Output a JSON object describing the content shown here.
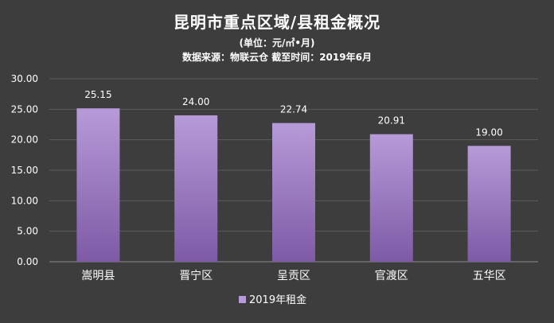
{
  "chart_data": {
    "type": "bar",
    "title": "昆明市重点区域/县租金概况",
    "subtitle": "(单位：元/㎡•月)",
    "source": "数据来源：物联云仓  截至时间：2019年6月",
    "categories": [
      "嵩明县",
      "晋宁区",
      "呈贡区",
      "官渡区",
      "五华区"
    ],
    "series": [
      {
        "name": "2019年租金",
        "values": [
          25.15,
          24.0,
          22.74,
          20.91,
          19.0
        ],
        "value_labels": [
          "25.15",
          "24.00",
          "22.74",
          "20.91",
          "19.00"
        ]
      }
    ],
    "ylim": [
      0,
      30
    ],
    "yticks": [
      "0.00",
      "5.00",
      "10.00",
      "15.00",
      "20.00",
      "25.00",
      "30.00"
    ],
    "grid": true,
    "legend": "bottom-center",
    "colors": {
      "bar_top": "#b79ad8",
      "bar_bottom": "#7e5aa6",
      "background": "#3d3d3d",
      "grid": "#5c5c5c",
      "text": "#ffffff"
    }
  }
}
